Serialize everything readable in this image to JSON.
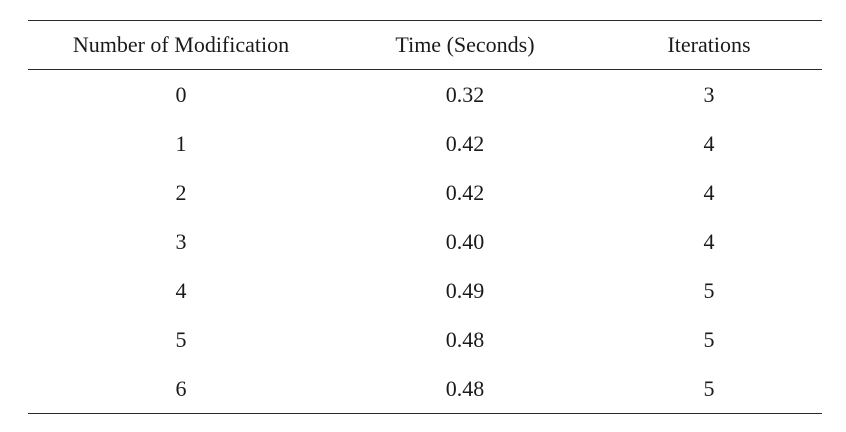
{
  "table": {
    "headers": [
      "Number of Modification",
      "Time (Seconds)",
      "Iterations"
    ],
    "rows": [
      [
        "0",
        "0.32",
        "3"
      ],
      [
        "1",
        "0.42",
        "4"
      ],
      [
        "2",
        "0.42",
        "4"
      ],
      [
        "3",
        "0.40",
        "4"
      ],
      [
        "4",
        "0.49",
        "5"
      ],
      [
        "5",
        "0.48",
        "5"
      ],
      [
        "6",
        "0.48",
        "5"
      ]
    ]
  }
}
